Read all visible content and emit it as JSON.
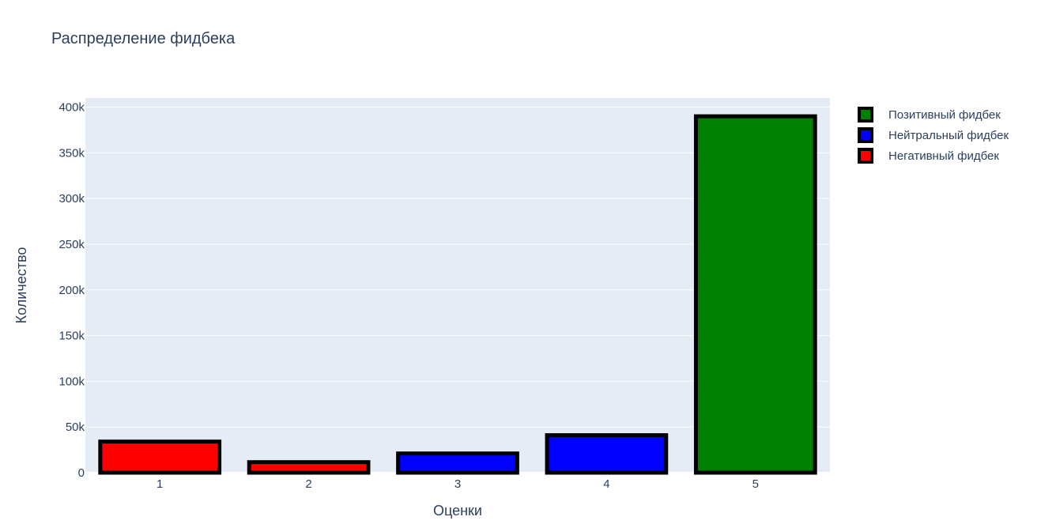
{
  "chart_data": {
    "type": "bar",
    "title": "Распределение фидбека",
    "xlabel": "Оценки",
    "ylabel": "Количество",
    "categories": [
      "1",
      "2",
      "3",
      "4",
      "5"
    ],
    "values": [
      34000,
      11500,
      21000,
      41000,
      390000
    ],
    "bar_colors": [
      "#ff0000",
      "#ff0000",
      "#0000ff",
      "#0000ff",
      "#008000"
    ],
    "bar_outline_color": "#000000",
    "ylim": [
      0,
      410000
    ],
    "yticks": [
      0,
      50000,
      100000,
      150000,
      200000,
      250000,
      300000,
      350000,
      400000
    ],
    "ytick_labels": [
      "0",
      "50k",
      "100k",
      "150k",
      "200k",
      "250k",
      "300k",
      "350k",
      "400k"
    ],
    "grid": true,
    "plot_background": "#e5ecf6",
    "legend_position": "top-right",
    "legend": [
      {
        "name": "Позитивный фидбек",
        "color": "#008000"
      },
      {
        "name": "Нейтральный фидбек",
        "color": "#0000ff"
      },
      {
        "name": "Негативный фидбек",
        "color": "#ff0000"
      }
    ]
  }
}
